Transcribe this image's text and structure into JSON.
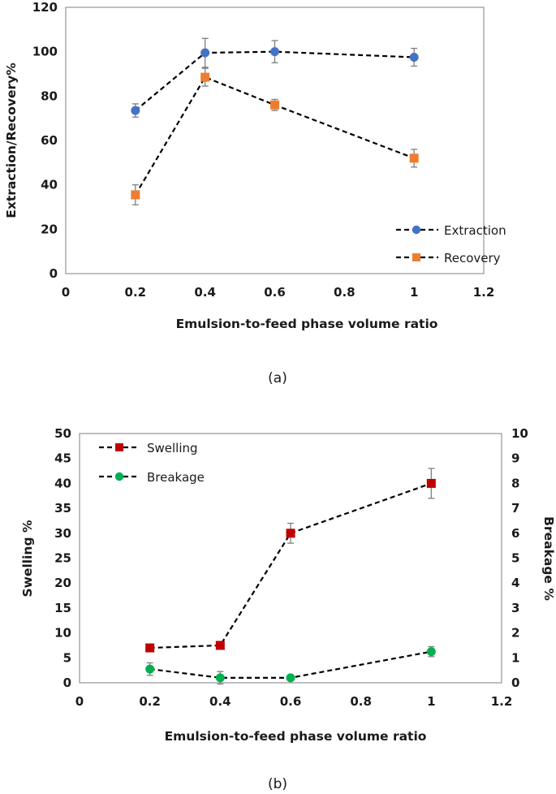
{
  "chart_data": [
    {
      "type": "line",
      "caption": "(a)",
      "title": "",
      "xlabel": "Emulsion-to-feed phase volume ratio",
      "ylabel": "Extraction/Recovery%",
      "xlim": [
        0,
        1.2
      ],
      "ylim": [
        0,
        120
      ],
      "xticks": [
        "0",
        "0.2",
        "0.4",
        "0.6",
        "0.8",
        "1",
        "1.2"
      ],
      "yticks": [
        "0",
        "20",
        "40",
        "60",
        "80",
        "100",
        "120"
      ],
      "series": [
        {
          "name": "Extraction",
          "color": "#4472c4",
          "marker": "circle",
          "x": [
            0.2,
            0.4,
            0.6,
            1.0
          ],
          "values": [
            73.5,
            99.5,
            100,
            97.5
          ],
          "errors": [
            3,
            6.5,
            5,
            4
          ]
        },
        {
          "name": "Recovery",
          "color": "#ed7d31",
          "marker": "square",
          "x": [
            0.2,
            0.4,
            0.6,
            1.0
          ],
          "values": [
            35.5,
            88.5,
            76,
            52
          ],
          "errors": [
            4.5,
            4,
            2.5,
            4
          ]
        }
      ],
      "legend": "bottom-right",
      "grid": false
    },
    {
      "type": "line",
      "caption": "(b)",
      "title": "",
      "xlabel": "Emulsion-to-feed phase volume ratio",
      "ylabel": "Swelling %",
      "y2label": "Breakage %",
      "xlim": [
        0,
        1.2
      ],
      "ylim": [
        0,
        50
      ],
      "y2lim": [
        0,
        10
      ],
      "xticks": [
        "0",
        "0.2",
        "0.4",
        "0.6",
        "0.8",
        "1",
        "1.2"
      ],
      "yticks": [
        "0",
        "5",
        "10",
        "15",
        "20",
        "25",
        "30",
        "35",
        "40",
        "45",
        "50"
      ],
      "y2ticks": [
        "0",
        "1",
        "2",
        "3",
        "4",
        "5",
        "6",
        "7",
        "8",
        "9",
        "10"
      ],
      "series": [
        {
          "name": "Swelling",
          "axis": "left",
          "color": "#c00000",
          "marker": "square",
          "x": [
            0.2,
            0.4,
            0.6,
            1.0
          ],
          "values": [
            7,
            7.5,
            30,
            40
          ],
          "errors": [
            0,
            0,
            2,
            3
          ]
        },
        {
          "name": "Breakage",
          "axis": "right",
          "color": "#00b050",
          "marker": "circle",
          "x": [
            0.2,
            0.4,
            0.6,
            1.0
          ],
          "values": [
            0.55,
            0.2,
            0.2,
            1.25
          ],
          "errors": [
            0.25,
            0.25,
            0,
            0.2
          ]
        }
      ],
      "legend": "top-left",
      "grid": false
    }
  ]
}
